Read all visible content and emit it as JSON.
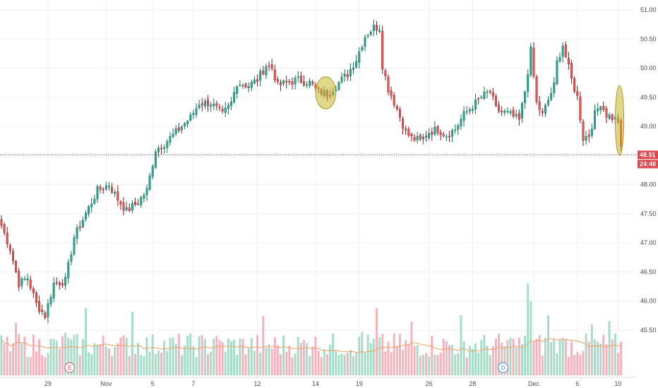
{
  "chart_data": {
    "type": "candlestick",
    "y_axis": {
      "ticks": [
        "51.00",
        "50.50",
        "50.00",
        "49.50",
        "49.00",
        "48.50",
        "48.00",
        "47.50",
        "47.00",
        "46.50",
        "46.00",
        "45.50"
      ],
      "range": [
        45.2,
        51.1
      ],
      "position": "right"
    },
    "x_axis": {
      "labels": [
        "29",
        "Nov",
        "5",
        "7",
        "12",
        "14",
        "19",
        "26",
        "28",
        "Dec",
        "6",
        "10"
      ]
    },
    "grid": true,
    "current_price": {
      "value": 48.51,
      "label": "48.51",
      "countdown": "24:48",
      "color": "#e0474c"
    },
    "colors": {
      "up": "#26a69a",
      "down": "#ef5350",
      "up_wick": "#1f6e4f",
      "down_wick": "#7a1d24",
      "volume_up": "#a8dcc9",
      "volume_down": "#f6b3bd",
      "volume_ma": "#f0a060",
      "highlight": "#c9b82b",
      "grid": "#eef0f3"
    },
    "events": [
      {
        "label": "E",
        "x_index": 23,
        "color": "#e0474c"
      },
      {
        "label": "D",
        "x_index": 172,
        "color": "#3d8ec9"
      }
    ],
    "highlights": [
      {
        "index_from": 109,
        "index_to": 114,
        "low": 49.3,
        "high": 49.85
      },
      {
        "index_from": 212,
        "index_to": 213,
        "low": 48.5,
        "high": 49.7
      }
    ],
    "control_points": [
      [
        0,
        47.3
      ],
      [
        3,
        46.9
      ],
      [
        6,
        46.3
      ],
      [
        9,
        46.4
      ],
      [
        12,
        45.95
      ],
      [
        15,
        45.75
      ],
      [
        18,
        46.3
      ],
      [
        22,
        46.35
      ],
      [
        25,
        47.1
      ],
      [
        27,
        47.3
      ],
      [
        30,
        47.6
      ],
      [
        33,
        47.9
      ],
      [
        37,
        48.0
      ],
      [
        40,
        47.75
      ],
      [
        43,
        47.55
      ],
      [
        47,
        47.7
      ],
      [
        50,
        47.9
      ],
      [
        53,
        48.6
      ],
      [
        56,
        48.7
      ],
      [
        59,
        48.85
      ],
      [
        62,
        49.0
      ],
      [
        65,
        49.15
      ],
      [
        68,
        49.4
      ],
      [
        72,
        49.4
      ],
      [
        76,
        49.2
      ],
      [
        79,
        49.4
      ],
      [
        81,
        49.75
      ],
      [
        85,
        49.7
      ],
      [
        88,
        49.8
      ],
      [
        91,
        50.05
      ],
      [
        93,
        50.0
      ],
      [
        95,
        49.7
      ],
      [
        98,
        49.75
      ],
      [
        102,
        49.8
      ],
      [
        106,
        49.75
      ],
      [
        109,
        49.6
      ],
      [
        112,
        49.55
      ],
      [
        115,
        49.7
      ],
      [
        119,
        49.9
      ],
      [
        122,
        50.15
      ],
      [
        125,
        50.55
      ],
      [
        128,
        50.7
      ],
      [
        130,
        50.7
      ],
      [
        131,
        50.05
      ],
      [
        133,
        49.65
      ],
      [
        136,
        49.3
      ],
      [
        139,
        48.9
      ],
      [
        141,
        48.8
      ],
      [
        144,
        48.75
      ],
      [
        147,
        48.9
      ],
      [
        150,
        48.95
      ],
      [
        153,
        48.85
      ],
      [
        156,
        48.95
      ],
      [
        159,
        49.2
      ],
      [
        162,
        49.35
      ],
      [
        165,
        49.5
      ],
      [
        168,
        49.6
      ],
      [
        170,
        49.3
      ],
      [
        172,
        49.25
      ],
      [
        175,
        49.2
      ],
      [
        178,
        49.1
      ],
      [
        180,
        49.6
      ],
      [
        182,
        50.3
      ],
      [
        184,
        49.4
      ],
      [
        186,
        49.2
      ],
      [
        188,
        49.45
      ],
      [
        190,
        49.7
      ],
      [
        191,
        50.1
      ],
      [
        193,
        50.4
      ],
      [
        196,
        49.8
      ],
      [
        198,
        49.5
      ],
      [
        200,
        48.8
      ],
      [
        202,
        48.85
      ],
      [
        204,
        49.2
      ],
      [
        206,
        49.4
      ],
      [
        208,
        49.2
      ],
      [
        210,
        49.15
      ],
      [
        212,
        49.1
      ],
      [
        213,
        48.6
      ]
    ],
    "volume_bars": 214
  }
}
